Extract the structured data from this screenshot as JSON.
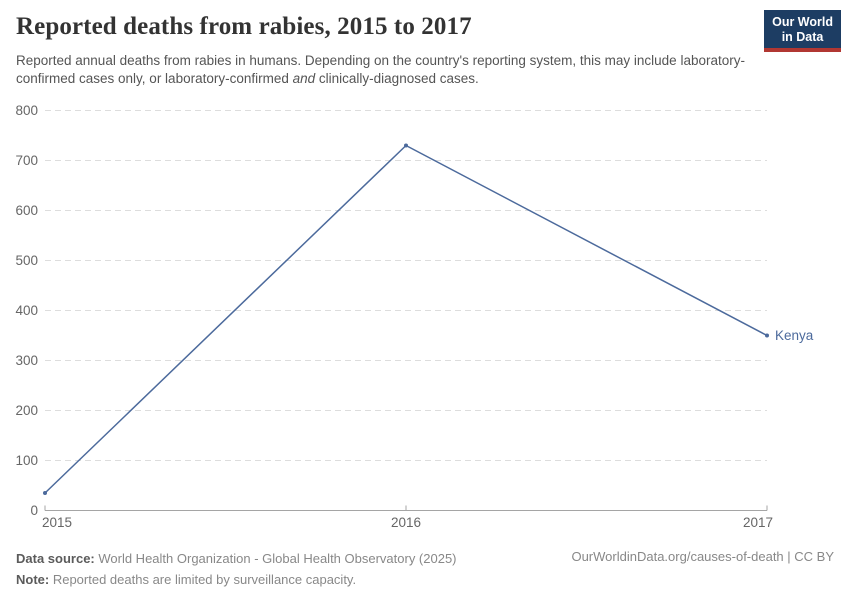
{
  "header": {
    "title": "Reported deaths from rabies, 2015 to 2017",
    "subtitle_part1": "Reported annual deaths from rabies in humans. Depending on the country's reporting system, this may include laboratory-confirmed cases only, or laboratory-confirmed ",
    "subtitle_italic": "and",
    "subtitle_part3": " clinically-diagnosed cases.",
    "logo": {
      "line1": "Our World",
      "line2": "in Data"
    }
  },
  "chart_data": {
    "type": "line",
    "title": "Reported deaths from rabies, 2015 to 2017",
    "xlabel": "",
    "ylabel": "",
    "x": [
      2015,
      2016,
      2017
    ],
    "x_ticks": [
      "2015",
      "2016",
      "2017"
    ],
    "y_ticks": [
      0,
      100,
      200,
      300,
      400,
      500,
      600,
      700,
      800
    ],
    "ylim": [
      0,
      800
    ],
    "grid": true,
    "gridline_style": "dashed",
    "legend_position": "end-of-line",
    "series": [
      {
        "name": "Kenya",
        "values": [
          35,
          730,
          350
        ],
        "color": "#4C6A9C"
      }
    ]
  },
  "footer": {
    "datasource_label": "Data source:",
    "datasource_text": " World Health Organization - Global Health Observatory (2025)",
    "note_label": "Note:",
    "note_text": " Reported deaths are limited by surveillance capacity.",
    "rights": "OurWorldinData.org/causes-of-death | CC BY"
  },
  "colors": {
    "line": "#4C6A9C",
    "grid": "#dddddd",
    "axis": "#a5a5a5",
    "tick_text": "#666666",
    "logo_bg": "#1d3d63",
    "logo_stripe": "#b13732"
  }
}
